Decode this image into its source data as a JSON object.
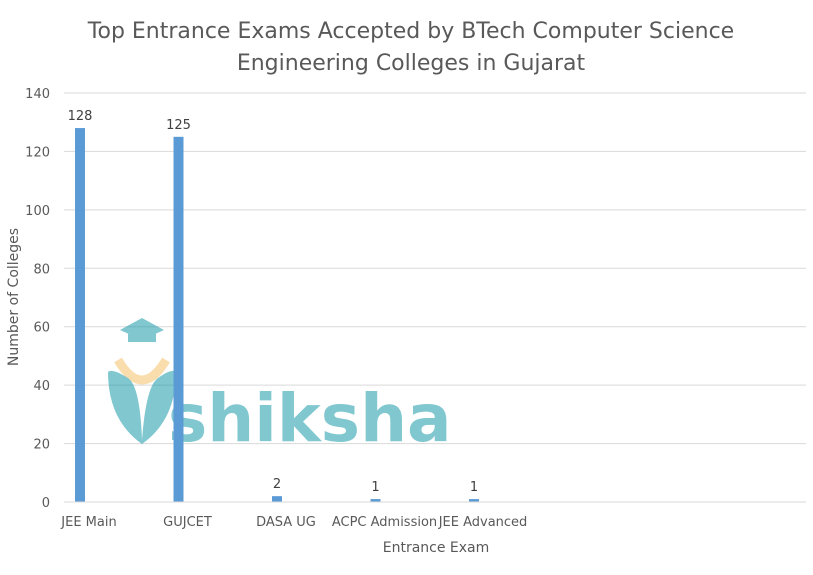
{
  "chart_data": {
    "type": "bar",
    "title_lines": [
      "Top Entrance Exams Accepted by BTech Computer Science",
      "Engineering Colleges in Gujarat"
    ],
    "xlabel": "Entrance Exam",
    "ylabel": "Number of Colleges",
    "categories": [
      "JEE Main",
      "GUJCET",
      "DASA UG",
      "ACPC Admission",
      "JEE Advanced"
    ],
    "values": [
      128,
      125,
      2,
      1,
      1
    ],
    "ylim": [
      0,
      140
    ],
    "yticks": [
      0,
      20,
      40,
      60,
      80,
      100,
      120,
      140
    ],
    "grid": true,
    "legend": "none",
    "bar_color": "#5b9bd5"
  },
  "watermark": {
    "text": "shiksha",
    "color": "#1a9aa8",
    "accent_color": "#f5c26b"
  }
}
